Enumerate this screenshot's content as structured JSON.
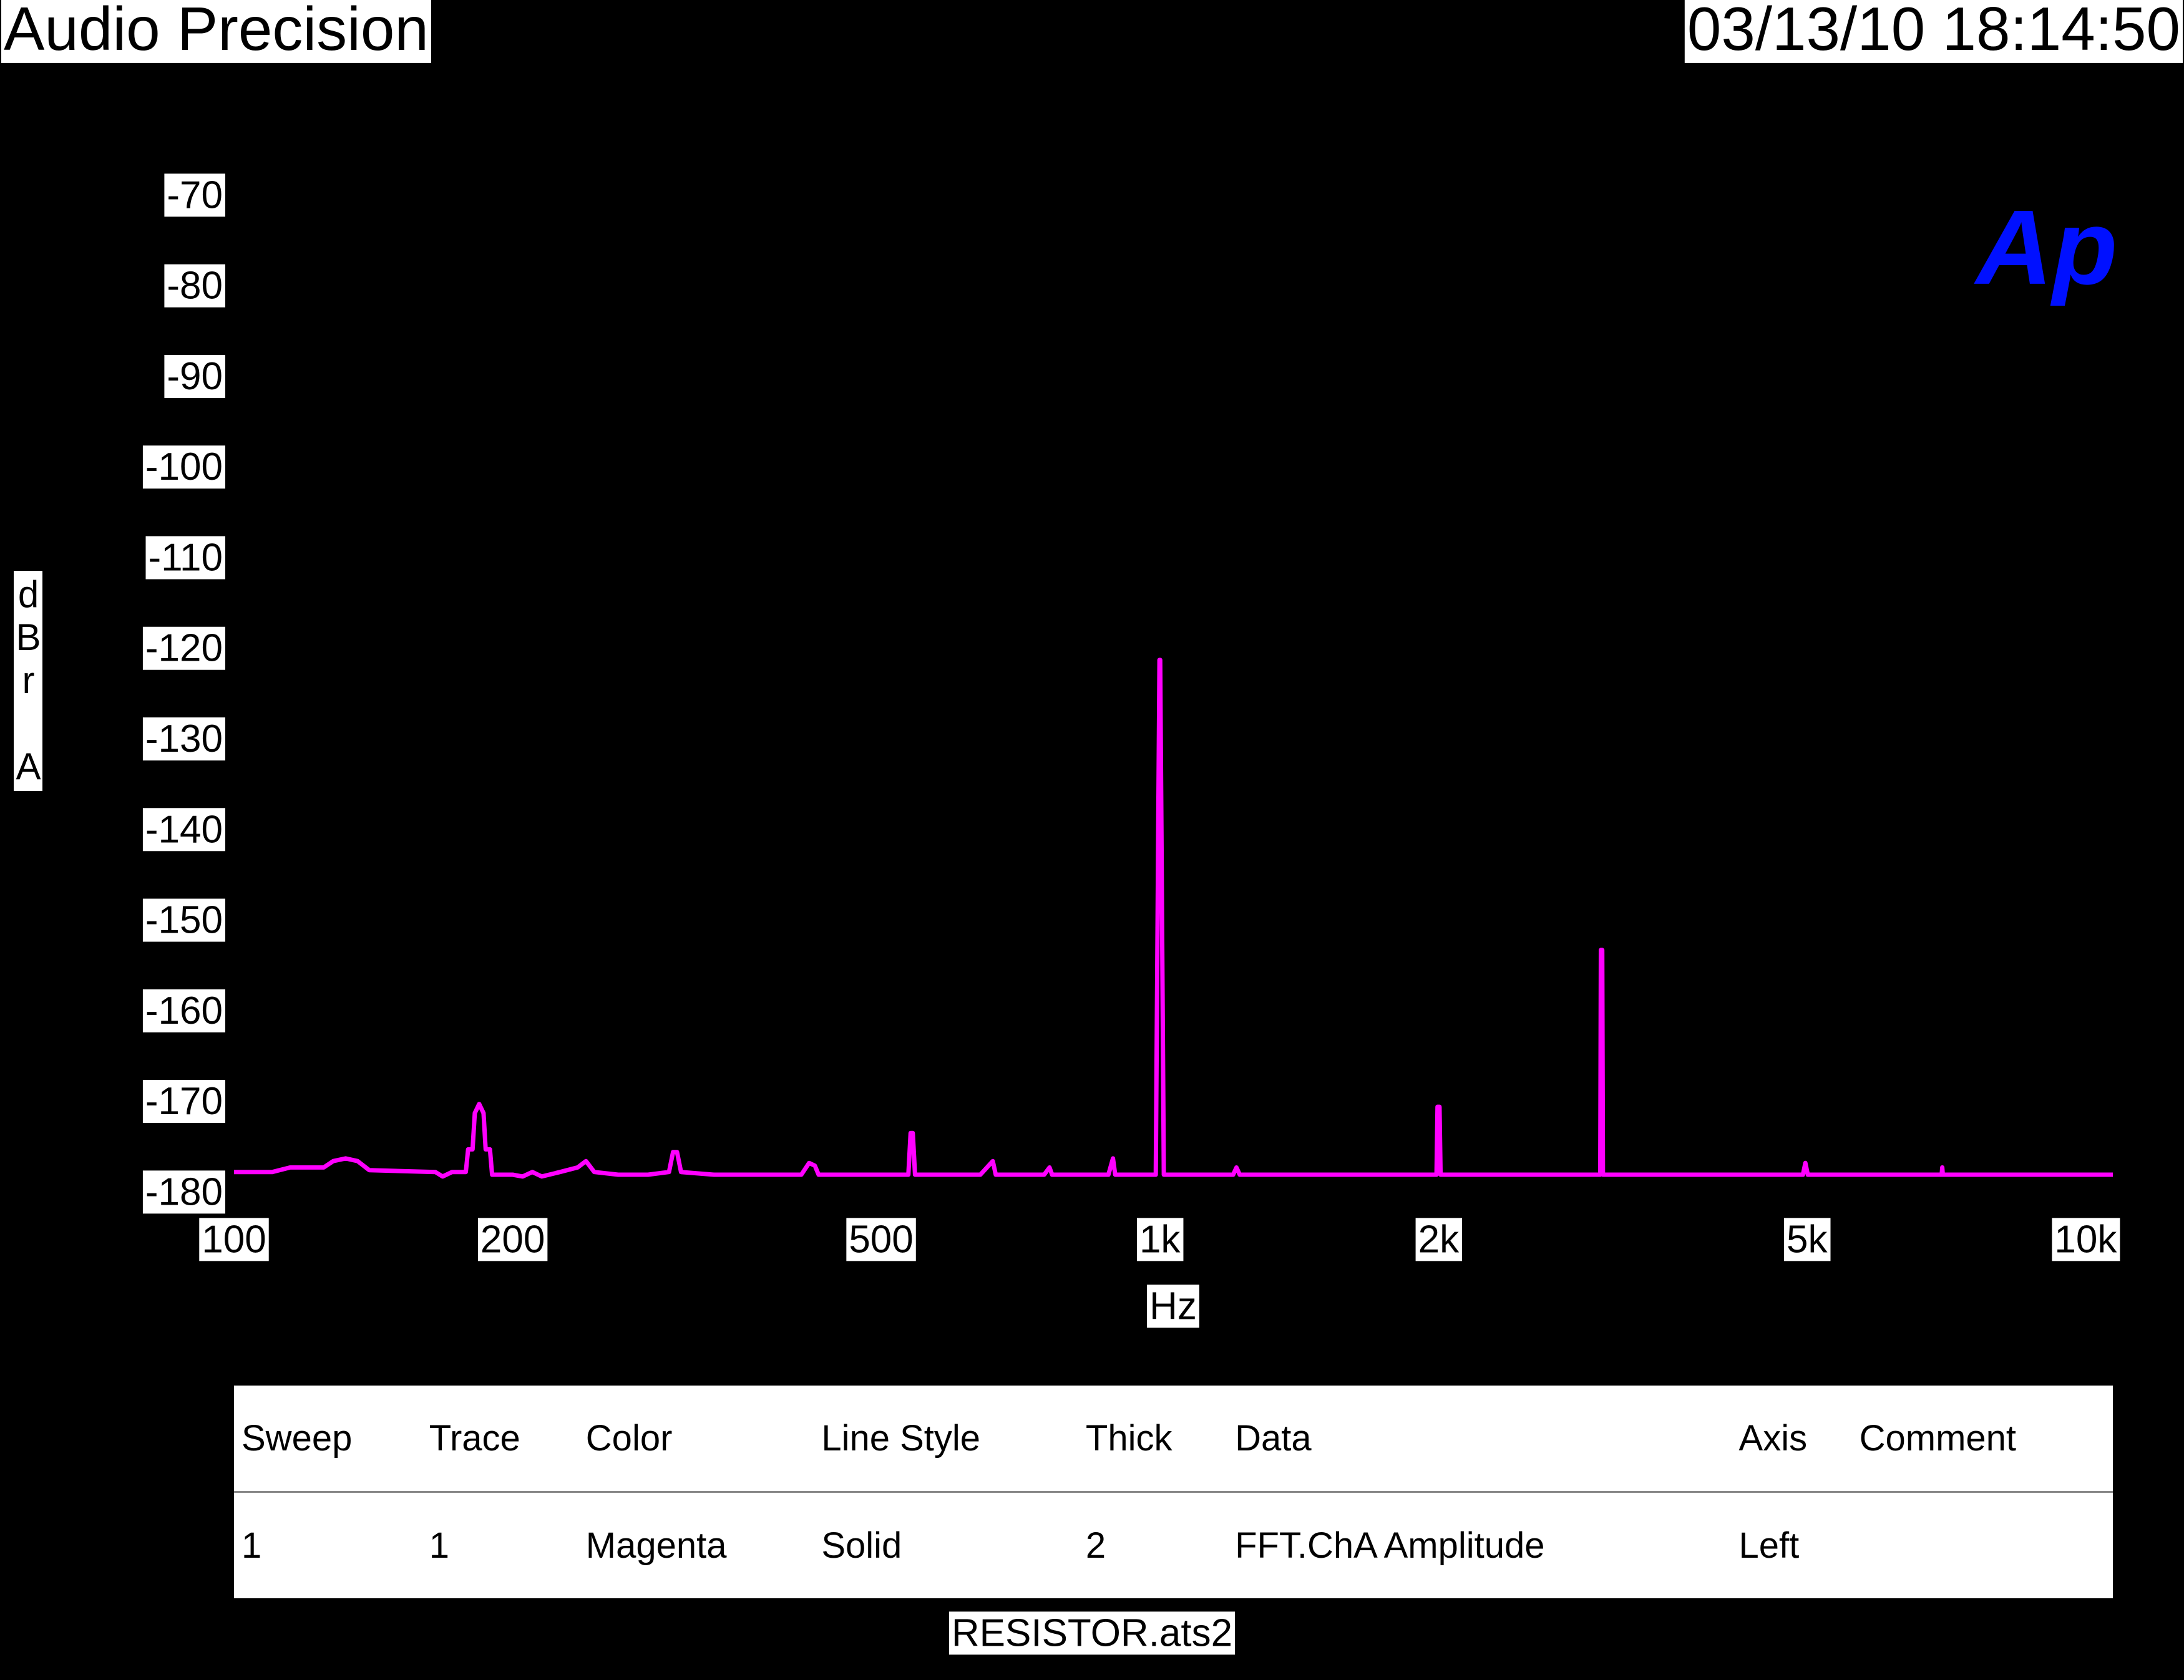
{
  "header": {
    "title": "Audio Precision",
    "timestamp": "03/13/10 18:14:50"
  },
  "chart_data": {
    "type": "line",
    "logo": "Ap",
    "xlabel": "Hz",
    "ylabel": "dBr A",
    "xscale": "log",
    "grid": false,
    "xlim": [
      100,
      10700
    ],
    "ylim": [
      -180,
      -70
    ],
    "xticks": [
      100,
      200,
      500,
      {
        "value": 1000,
        "label": "1k"
      },
      {
        "value": 2000,
        "label": "2k"
      },
      {
        "value": 5000,
        "label": "5k"
      },
      {
        "value": 10000,
        "label": "10k"
      }
    ],
    "yticks": [
      -70,
      -80,
      -90,
      -100,
      -110,
      -120,
      -130,
      -140,
      -150,
      -160,
      -170,
      -180
    ],
    "series": [
      {
        "name": "FFT.ChA Amplitude",
        "color": "#ff00ff",
        "x": [
          100,
          110,
          115,
          125,
          128,
          132,
          136,
          140,
          165,
          168,
          172,
          178,
          179,
          181,
          182,
          184,
          186,
          187,
          189,
          190,
          200,
          205,
          210,
          215,
          225,
          235,
          240,
          245,
          260,
          280,
          295,
          298,
          301,
          304,
          330,
          410,
          418,
          424,
          428,
          500,
          535,
          538,
          541,
          544,
          600,
          640,
          660,
          665,
          750,
          760,
          765,
          880,
          890,
          895,
          990,
          996,
          999,
          1001,
          1004,
          1010,
          1200,
          1210,
          1220,
          1990,
          1995,
          2005,
          2010,
          2990,
          2995,
          3005,
          3010,
          4950,
          4980,
          5010,
          6990,
          7000,
          7010,
          10700
        ],
        "values": [
          -177.5,
          -177.5,
          -177,
          -177,
          -176.3,
          -176,
          -176.3,
          -177.3,
          -177.5,
          -178,
          -177.5,
          -177.5,
          -175,
          -175,
          -171,
          -170,
          -171,
          -175,
          -175,
          -177.8,
          -177.8,
          -178,
          -177.5,
          -178,
          -177.5,
          -177,
          -176.3,
          -177.5,
          -177.8,
          -177.8,
          -177.5,
          -175.3,
          -175.3,
          -177.5,
          -177.8,
          -177.8,
          -176.5,
          -176.8,
          -177.8,
          -177.8,
          -177.8,
          -173.2,
          -173.2,
          -177.8,
          -177.8,
          -177.8,
          -176.3,
          -177.8,
          -177.8,
          -177,
          -177.8,
          -177.8,
          -176,
          -177.8,
          -177.8,
          -140,
          -121,
          -121,
          -140,
          -177.8,
          -177.8,
          -177,
          -177.8,
          -177.8,
          -170.3,
          -170.3,
          -177.8,
          -177.8,
          -153,
          -153,
          -177.8,
          -177.8,
          -176.5,
          -177.8,
          -177.8,
          -177,
          -177.8,
          -177.8
        ]
      }
    ]
  },
  "legend_table": {
    "headers": [
      "Sweep",
      "Trace",
      "Color",
      "Line Style",
      "Thick",
      "Data",
      "Axis",
      "Comment"
    ],
    "rows": [
      [
        "1",
        "1",
        "Magenta",
        "Solid",
        "2",
        "FFT.ChA Amplitude",
        "Left"
      ]
    ]
  },
  "footer": "RESISTOR.ats2"
}
